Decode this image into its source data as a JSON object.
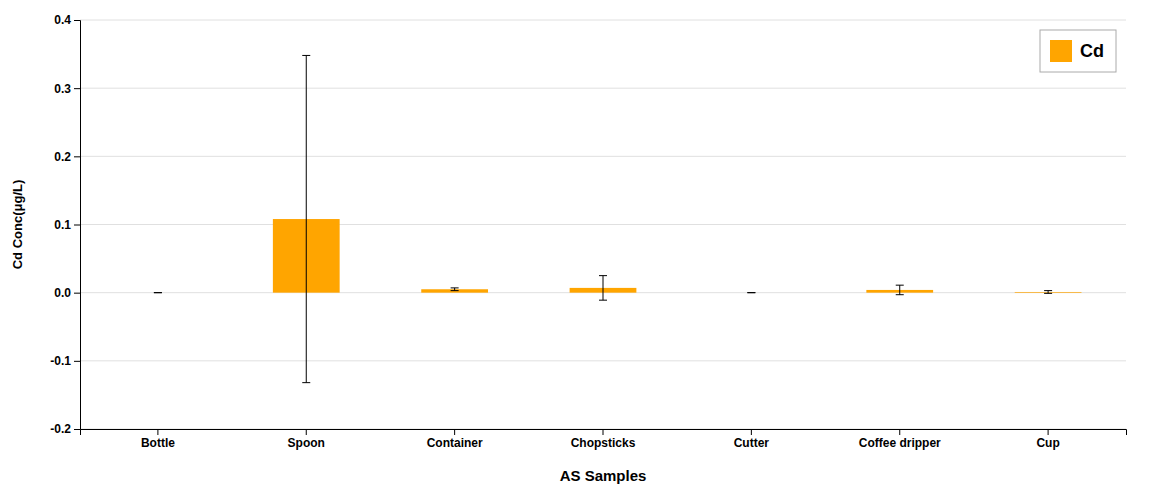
{
  "chart_data": {
    "type": "bar",
    "xlabel": "AS Samples",
    "ylabel": "Cd Conc(μg/L)",
    "categories": [
      "Bottle",
      "Spoon",
      "Container",
      "Chopsticks",
      "Cutter",
      "Coffee dripper",
      "Cup"
    ],
    "series": [
      {
        "name": "Cd",
        "color": "#FFA500",
        "values": [
          0.0,
          0.108,
          0.005,
          0.007,
          0.0,
          0.004,
          0.001
        ],
        "errors": [
          0.0,
          0.24,
          0.002,
          0.018,
          0.0,
          0.007,
          0.002
        ]
      }
    ],
    "ylim": [
      -0.2,
      0.4
    ],
    "yticks": [
      -0.2,
      -0.1,
      {
        "value": 0.0,
        "label": "0.0"
      },
      0.1,
      0.2,
      0.3,
      0.4
    ],
    "grid": true,
    "legend": "upper right"
  }
}
